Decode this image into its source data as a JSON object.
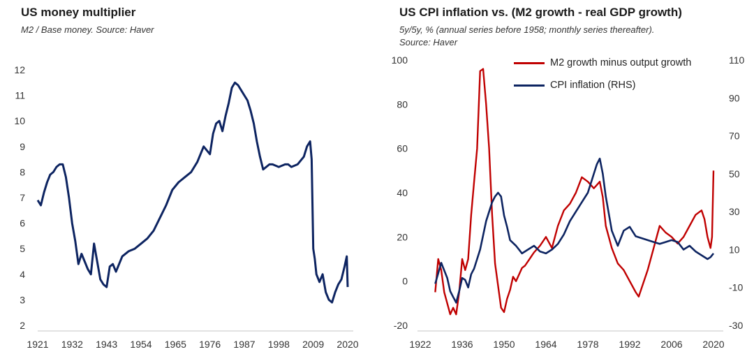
{
  "colors": {
    "navy": "#0d2461",
    "red": "#c00000",
    "axis": "#d9d9d9"
  },
  "left": {
    "title": "US money multiplier",
    "subtitle": "M2 / Base money. Source: Haver"
  },
  "right": {
    "title": "US CPI inflation vs. (M2 growth - real GDP growth)",
    "subtitle_line1": "5y/5y, % (annual series before 1958; monthly series thereafter).",
    "subtitle_line2": "Source: Haver",
    "legend": {
      "red_label": "M2 growth minus output growth",
      "navy_label": "CPI inflation (RHS)"
    }
  },
  "chart_data": [
    {
      "type": "line",
      "title": "US money multiplier",
      "subtitle": "M2 / Base money. Source: Haver",
      "xlim": [
        1921,
        2020
      ],
      "ylim": [
        2,
        12
      ],
      "x_ticks": [
        "1921",
        "1932",
        "1943",
        "1954",
        "1965",
        "1976",
        "1987",
        "1998",
        "2009",
        "2020"
      ],
      "y_ticks": [
        "2",
        "3",
        "4",
        "5",
        "6",
        "7",
        "8",
        "9",
        "10",
        "11",
        "12"
      ],
      "grid": false,
      "series": [
        {
          "color": "#0d2461",
          "x": [
            1921,
            1922,
            1923,
            1924,
            1925,
            1926,
            1927,
            1928,
            1929,
            1930,
            1931,
            1932,
            1933,
            1934,
            1935,
            1936,
            1937,
            1938,
            1939,
            1940,
            1941,
            1942,
            1943,
            1944,
            1945,
            1946,
            1948,
            1950,
            1952,
            1954,
            1956,
            1958,
            1960,
            1962,
            1964,
            1966,
            1968,
            1970,
            1972,
            1974,
            1976,
            1977,
            1978,
            1979,
            1980,
            1981,
            1982,
            1983,
            1984,
            1985,
            1986,
            1987,
            1988,
            1989,
            1990,
            1991,
            1992,
            1993,
            1994,
            1995,
            1996,
            1998,
            2000,
            2001,
            2002,
            2004,
            2006,
            2007,
            2008,
            2008.5,
            2009,
            2009.5,
            2010,
            2011,
            2012,
            2013,
            2014,
            2015,
            2016,
            2017,
            2018,
            2019,
            2019.7,
            2020
          ],
          "values": [
            6.9,
            6.7,
            7.2,
            7.6,
            7.9,
            8.0,
            8.2,
            8.3,
            8.3,
            7.8,
            7.0,
            6.0,
            5.3,
            4.4,
            4.8,
            4.5,
            4.2,
            4.0,
            5.2,
            4.5,
            3.8,
            3.6,
            3.5,
            4.3,
            4.4,
            4.1,
            4.7,
            4.9,
            5.0,
            5.2,
            5.4,
            5.7,
            6.2,
            6.7,
            7.3,
            7.6,
            7.8,
            8.0,
            8.4,
            9.0,
            8.7,
            9.5,
            9.9,
            10.0,
            9.6,
            10.2,
            10.7,
            11.3,
            11.5,
            11.4,
            11.2,
            11.0,
            10.8,
            10.4,
            9.9,
            9.2,
            8.6,
            8.1,
            8.2,
            8.3,
            8.3,
            8.2,
            8.3,
            8.3,
            8.2,
            8.3,
            8.6,
            9.0,
            9.2,
            8.5,
            5.0,
            4.6,
            4.0,
            3.7,
            4.0,
            3.3,
            3.0,
            2.9,
            3.3,
            3.6,
            3.8,
            4.3,
            4.7,
            3.5
          ]
        }
      ]
    },
    {
      "type": "line",
      "title": "US CPI inflation vs. (M2 growth - real GDP growth)",
      "subtitle": "5y/5y, % (annual series before 1958; monthly series thereafter). Source: Haver",
      "xlim": [
        1922,
        2020
      ],
      "ylim": [
        -20,
        100
      ],
      "y2lim": [
        -30,
        110
      ],
      "x_ticks": [
        "1922",
        "1936",
        "1950",
        "1964",
        "1978",
        "1992",
        "2006",
        "2020"
      ],
      "y_ticks": [
        "-20",
        "0",
        "20",
        "40",
        "60",
        "80",
        "100"
      ],
      "y2_ticks": [
        "-30",
        "-10",
        "10",
        "30",
        "50",
        "70",
        "90",
        "110"
      ],
      "grid": false,
      "legend_position": "top-right",
      "series": [
        {
          "name": "M2 growth minus output growth",
          "color": "#c00000",
          "axis": "left",
          "x": [
            1927,
            1928,
            1929,
            1930,
            1931,
            1932,
            1933,
            1934,
            1935,
            1936,
            1937,
            1938,
            1939,
            1940,
            1941,
            1942,
            1943,
            1944,
            1945,
            1946,
            1947,
            1948,
            1949,
            1950,
            1951,
            1952,
            1953,
            1954,
            1955,
            1956,
            1957,
            1958,
            1960,
            1962,
            1964,
            1966,
            1968,
            1970,
            1972,
            1974,
            1976,
            1978,
            1980,
            1982,
            1983,
            1984,
            1986,
            1988,
            1990,
            1992,
            1994,
            1995,
            1996,
            1998,
            2000,
            2002,
            2004,
            2006,
            2008,
            2010,
            2012,
            2014,
            2016,
            2017,
            2018,
            2019,
            2019.5,
            2020
          ],
          "values": [
            -5,
            10,
            5,
            -5,
            -10,
            -15,
            -12,
            -15,
            -5,
            10,
            5,
            10,
            30,
            45,
            60,
            95,
            96,
            80,
            60,
            30,
            8,
            -2,
            -12,
            -14,
            -8,
            -4,
            2,
            0,
            3,
            6,
            7,
            9,
            13,
            16,
            20,
            15,
            25,
            32,
            35,
            40,
            47,
            45,
            42,
            45,
            38,
            25,
            15,
            8,
            5,
            0,
            -5,
            -7,
            -3,
            5,
            15,
            25,
            22,
            20,
            17,
            20,
            25,
            30,
            32,
            28,
            20,
            15,
            20,
            50
          ]
        },
        {
          "name": "CPI inflation (RHS)",
          "color": "#0d2461",
          "axis": "right",
          "x": [
            1927,
            1929,
            1931,
            1932,
            1933,
            1934,
            1935,
            1936,
            1937,
            1938,
            1939,
            1940,
            1942,
            1944,
            1946,
            1947,
            1948,
            1949,
            1950,
            1951,
            1952,
            1954,
            1955,
            1956,
            1958,
            1960,
            1962,
            1964,
            1966,
            1968,
            1970,
            1972,
            1974,
            1976,
            1978,
            1980,
            1981,
            1982,
            1983,
            1984,
            1986,
            1988,
            1990,
            1992,
            1994,
            1996,
            1998,
            2000,
            2002,
            2004,
            2006,
            2008,
            2010,
            2012,
            2014,
            2016,
            2018,
            2019,
            2020
          ],
          "values": [
            -8,
            3,
            -5,
            -12,
            -15,
            -18,
            -12,
            -5,
            -6,
            -10,
            -3,
            0,
            10,
            25,
            35,
            38,
            40,
            38,
            28,
            22,
            15,
            12,
            10,
            8,
            10,
            12,
            9,
            8,
            10,
            13,
            18,
            25,
            30,
            35,
            40,
            50,
            55,
            58,
            50,
            38,
            20,
            12,
            20,
            22,
            17,
            16,
            15,
            14,
            13,
            14,
            15,
            14,
            10,
            12,
            9,
            7,
            5,
            6,
            8
          ]
        }
      ]
    }
  ]
}
